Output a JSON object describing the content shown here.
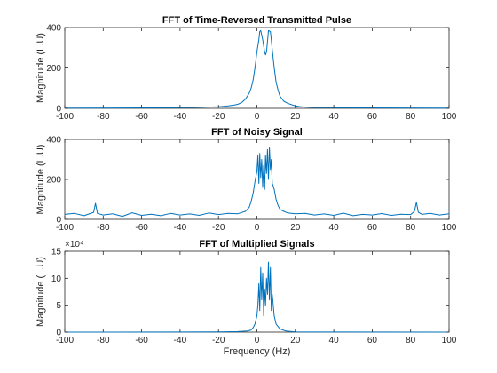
{
  "colors": {
    "series": "#0072BD",
    "axes": "#262626"
  },
  "chart_data": [
    {
      "type": "line",
      "title": "FFT of Time-Reversed Transmitted Pulse",
      "xlabel": "",
      "ylabel": "Magnitude (L.U)",
      "xlim": [
        -100,
        100
      ],
      "ylim": [
        0,
        400
      ],
      "xticks": [
        -100,
        -80,
        -60,
        -40,
        -20,
        0,
        20,
        40,
        60,
        80,
        100
      ],
      "yticks": [
        0,
        200,
        400
      ],
      "xtick_labels": [
        "-100",
        "-80",
        "-60",
        "-40",
        "-20",
        "0",
        "20",
        "40",
        "60",
        "80",
        "100"
      ],
      "ytick_labels": [
        "0",
        "200",
        "400"
      ],
      "exponent_label": "",
      "series": [
        {
          "x": [
            -100,
            -60,
            -40,
            -30,
            -20,
            -15,
            -12,
            -10,
            -8,
            -6,
            -4,
            -3,
            -2,
            -1,
            0,
            1,
            1.5,
            2,
            3,
            4,
            4.5,
            5,
            5.5,
            6,
            7,
            7.5,
            8,
            9,
            10,
            11,
            12,
            14,
            16,
            18,
            20,
            22,
            25,
            30,
            40,
            60,
            100
          ],
          "y": [
            1,
            2,
            3,
            5,
            8,
            12,
            16,
            20,
            28,
            45,
            75,
            100,
            140,
            200,
            280,
            340,
            380,
            385,
            340,
            280,
            265,
            280,
            330,
            385,
            380,
            340,
            290,
            200,
            130,
            90,
            60,
            35,
            25,
            18,
            12,
            9,
            6,
            4,
            3,
            2,
            1
          ]
        }
      ]
    },
    {
      "type": "line",
      "title": "FFT of Noisy Signal",
      "xlabel": "",
      "ylabel": "Magnitude (L.U)",
      "xlim": [
        -100,
        100
      ],
      "ylim": [
        0,
        400
      ],
      "xticks": [
        -100,
        -80,
        -60,
        -40,
        -20,
        0,
        20,
        40,
        60,
        80,
        100
      ],
      "yticks": [
        0,
        200,
        400
      ],
      "xtick_labels": [
        "-100",
        "-80",
        "-60",
        "-40",
        "-20",
        "0",
        "20",
        "40",
        "60",
        "80",
        "100"
      ],
      "ytick_labels": [
        "0",
        "200",
        "400"
      ],
      "exponent_label": "",
      "series": [
        {
          "x": [
            -100,
            -95,
            -90,
            -85,
            -84,
            -83,
            -80,
            -75,
            -70,
            -65,
            -60,
            -55,
            -50,
            -45,
            -40,
            -35,
            -30,
            -25,
            -20,
            -15,
            -10,
            -6,
            -4,
            -3,
            -2,
            -1,
            0,
            0.5,
            1,
            1.5,
            2,
            2.5,
            3,
            3.5,
            4,
            4.5,
            5,
            5.5,
            6,
            6.5,
            7,
            7.5,
            8,
            9,
            10,
            11,
            12,
            14,
            16,
            20,
            25,
            30,
            35,
            40,
            45,
            50,
            55,
            60,
            65,
            70,
            75,
            80,
            82,
            83,
            84,
            86,
            90,
            95,
            100
          ],
          "y": [
            25,
            30,
            18,
            35,
            80,
            30,
            22,
            28,
            15,
            33,
            20,
            26,
            18,
            30,
            22,
            27,
            20,
            32,
            24,
            30,
            28,
            40,
            60,
            90,
            130,
            190,
            240,
            320,
            180,
            330,
            210,
            300,
            160,
            270,
            150,
            320,
            230,
            350,
            200,
            360,
            250,
            300,
            180,
            150,
            100,
            70,
            50,
            40,
            32,
            28,
            30,
            22,
            27,
            20,
            31,
            18,
            25,
            22,
            29,
            20,
            26,
            24,
            40,
            85,
            35,
            25,
            30,
            22,
            28
          ]
        }
      ]
    },
    {
      "type": "line",
      "title": "FFT of Multiplied Signals",
      "xlabel": "Frequency (Hz)",
      "ylabel": "Magnitude (L.U)",
      "xlim": [
        -100,
        100
      ],
      "ylim": [
        0,
        15
      ],
      "xticks": [
        -100,
        -80,
        -60,
        -40,
        -20,
        0,
        20,
        40,
        60,
        80,
        100
      ],
      "yticks": [
        0,
        5,
        10,
        15
      ],
      "xtick_labels": [
        "-100",
        "-80",
        "-60",
        "-40",
        "-20",
        "0",
        "20",
        "40",
        "60",
        "80",
        "100"
      ],
      "ytick_labels": [
        "0",
        "5",
        "10",
        "15"
      ],
      "exponent_label": "×10⁴",
      "series": [
        {
          "x": [
            -100,
            -40,
            -20,
            -10,
            -5,
            -3,
            -2,
            -1,
            0,
            0.5,
            1,
            1.5,
            2,
            2.5,
            3,
            3.5,
            4,
            4.5,
            5,
            5.5,
            6,
            6.5,
            7,
            7.5,
            8,
            9,
            10,
            12,
            15,
            20,
            40,
            100
          ],
          "y": [
            0,
            0.02,
            0.05,
            0.1,
            0.2,
            0.4,
            0.8,
            1.5,
            3,
            5,
            9,
            4,
            12,
            6,
            11,
            3,
            8,
            5,
            10,
            7,
            13,
            6,
            12,
            4,
            7,
            3,
            1.5,
            0.6,
            0.2,
            0.05,
            0.02,
            0
          ]
        }
      ]
    }
  ]
}
